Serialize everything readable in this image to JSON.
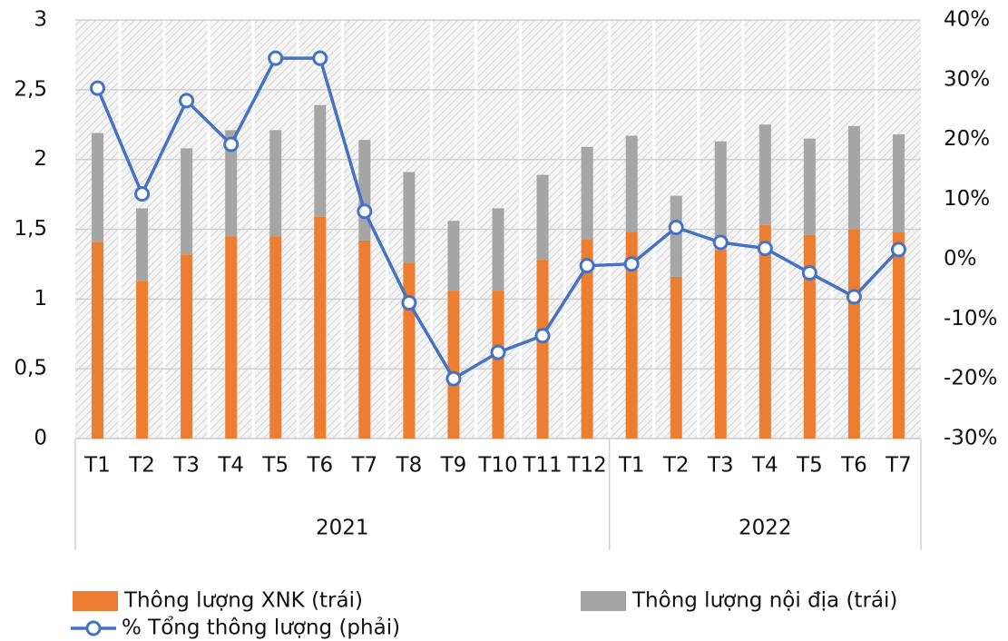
{
  "chart_data": {
    "type": "bar",
    "stacked": true,
    "groups": [
      {
        "name": "2021",
        "categories": [
          "T1",
          "T2",
          "T3",
          "T4",
          "T5",
          "T6",
          "T7",
          "T8",
          "T9",
          "T10",
          "T11",
          "T12"
        ]
      },
      {
        "name": "2022",
        "categories": [
          "T1",
          "T2",
          "T3",
          "T4",
          "T5",
          "T6",
          "T7"
        ]
      }
    ],
    "series": [
      {
        "name": "Thông lượng XNK (trái)",
        "type": "bar",
        "color": "#ED7D31",
        "values": [
          1.41,
          1.13,
          1.32,
          1.45,
          1.45,
          1.59,
          1.42,
          1.26,
          1.06,
          1.06,
          1.28,
          1.43,
          1.48,
          1.16,
          1.35,
          1.53,
          1.46,
          1.5,
          1.48
        ]
      },
      {
        "name": "Thông lượng nội địa (trái)",
        "type": "bar",
        "color": "#A5A5A5",
        "values": [
          0.78,
          0.52,
          0.76,
          0.76,
          0.76,
          0.8,
          0.72,
          0.65,
          0.5,
          0.59,
          0.61,
          0.66,
          0.69,
          0.58,
          0.78,
          0.72,
          0.69,
          0.74,
          0.7
        ]
      },
      {
        "name": "% Tổng thông lượng (phải)",
        "type": "line",
        "axis": "y2",
        "color": "#4472C4",
        "values": [
          28.6,
          10.9,
          26.5,
          19.2,
          33.6,
          33.6,
          8.0,
          -7.3,
          -20.0,
          -15.6,
          -12.8,
          -1.1,
          -0.8,
          5.3,
          2.8,
          1.8,
          -2.3,
          -6.3,
          1.6
        ]
      }
    ],
    "ylim": [
      0,
      3
    ],
    "yticks": [
      0,
      {
        "value": 0.5,
        "label": "0,5"
      },
      1,
      {
        "value": 1.5,
        "label": "1,5"
      },
      2,
      {
        "value": 2.5,
        "label": "2,5"
      },
      3
    ],
    "y2lim": [
      -30,
      40
    ],
    "y2ticks": [
      {
        "value": -30,
        "label": "-30%"
      },
      {
        "value": -20,
        "label": "-20%"
      },
      {
        "value": -10,
        "label": "-10%"
      },
      {
        "value": 0,
        "label": "0%"
      },
      {
        "value": 10,
        "label": "10%"
      },
      {
        "value": 20,
        "label": "20%"
      },
      {
        "value": 30,
        "label": "30%"
      },
      {
        "value": 40,
        "label": "40%"
      }
    ],
    "grid": true
  }
}
